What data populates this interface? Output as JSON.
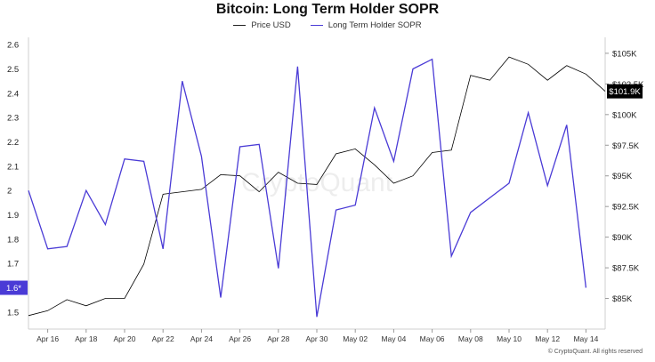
{
  "chart_data": {
    "type": "line",
    "title": "Bitcoin: Long Term Holder SOPR",
    "watermark": "CryptoQuant",
    "copyright": "© CryptoQuant. All rights reserved",
    "left_axis": {
      "ylim": [
        1.43,
        2.63
      ],
      "ticks": [
        "2.6",
        "2.5",
        "2.4",
        "2.3",
        "2.2",
        "2.1",
        "2",
        "1.9",
        "1.8",
        "1.7",
        "1.6",
        "1.5"
      ],
      "tick_values": [
        2.6,
        2.5,
        2.4,
        2.3,
        2.2,
        2.1,
        2.0,
        1.9,
        1.8,
        1.7,
        1.6,
        1.5
      ],
      "current_label": "1.6*",
      "current_value": 1.6
    },
    "right_axis": {
      "ylim": [
        82500,
        106300
      ],
      "ticks": [
        "$105K",
        "$102.5K",
        "$100K",
        "$97.5K",
        "$95K",
        "$92.5K",
        "$90K",
        "$87.5K",
        "$85K"
      ],
      "tick_values": [
        105000,
        102500,
        100000,
        97500,
        95000,
        92500,
        90000,
        87500,
        85000
      ],
      "current_label": "$101.9K",
      "current_value": 101900
    },
    "x_axis": {
      "start": "2025-04-15",
      "end": "2025-05-15",
      "tick_labels": [
        "Apr 16",
        "Apr 18",
        "Apr 20",
        "Apr 22",
        "Apr 24",
        "Apr 26",
        "Apr 28",
        "Apr 30",
        "May 02",
        "May 04",
        "May 06",
        "May 08",
        "May 10",
        "May 12",
        "May 14"
      ],
      "tick_dates": [
        "2025-04-16",
        "2025-04-18",
        "2025-04-20",
        "2025-04-22",
        "2025-04-24",
        "2025-04-26",
        "2025-04-28",
        "2025-04-30",
        "2025-05-02",
        "2025-05-04",
        "2025-05-06",
        "2025-05-08",
        "2025-05-10",
        "2025-05-12",
        "2025-05-14"
      ]
    },
    "series": [
      {
        "name": "Price USD",
        "axis": "right",
        "color": "#000000",
        "x": [
          "2025-04-15",
          "2025-04-16",
          "2025-04-17",
          "2025-04-18",
          "2025-04-19",
          "2025-04-20",
          "2025-04-21",
          "2025-04-22",
          "2025-04-23",
          "2025-04-24",
          "2025-04-25",
          "2025-04-26",
          "2025-04-27",
          "2025-04-28",
          "2025-04-29",
          "2025-04-30",
          "2025-05-01",
          "2025-05-02",
          "2025-05-03",
          "2025-05-04",
          "2025-05-05",
          "2025-05-06",
          "2025-05-07",
          "2025-05-08",
          "2025-05-09",
          "2025-05-10",
          "2025-05-11",
          "2025-05-12",
          "2025-05-13",
          "2025-05-14",
          "2025-05-15"
        ],
        "values": [
          83600,
          84000,
          84900,
          84400,
          85000,
          85000,
          87800,
          93500,
          93700,
          93900,
          95100,
          95000,
          93700,
          95300,
          94400,
          94300,
          96800,
          97200,
          95900,
          94400,
          95000,
          96900,
          97100,
          103200,
          102800,
          104700,
          104100,
          102800,
          104000,
          103300,
          101900
        ]
      },
      {
        "name": "Long Term Holder SOPR",
        "axis": "left",
        "color": "#4a3bd6",
        "x": [
          "2025-04-15",
          "2025-04-16",
          "2025-04-17",
          "2025-04-18",
          "2025-04-19",
          "2025-04-20",
          "2025-04-21",
          "2025-04-22",
          "2025-04-23",
          "2025-04-24",
          "2025-04-25",
          "2025-04-26",
          "2025-04-27",
          "2025-04-28",
          "2025-04-29",
          "2025-04-30",
          "2025-05-01",
          "2025-05-02",
          "2025-05-03",
          "2025-05-04",
          "2025-05-05",
          "2025-05-06",
          "2025-05-07",
          "2025-05-08",
          "2025-05-09",
          "2025-05-10",
          "2025-05-11",
          "2025-05-12",
          "2025-05-13",
          "2025-05-14"
        ],
        "values": [
          2.0,
          1.76,
          1.77,
          2.0,
          1.86,
          2.13,
          2.12,
          1.76,
          2.45,
          2.14,
          1.56,
          2.18,
          2.19,
          1.68,
          2.51,
          1.48,
          1.92,
          1.94,
          2.34,
          2.12,
          2.5,
          2.54,
          1.73,
          1.91,
          1.97,
          2.03,
          2.32,
          2.02,
          2.27,
          1.6
        ]
      }
    ]
  }
}
